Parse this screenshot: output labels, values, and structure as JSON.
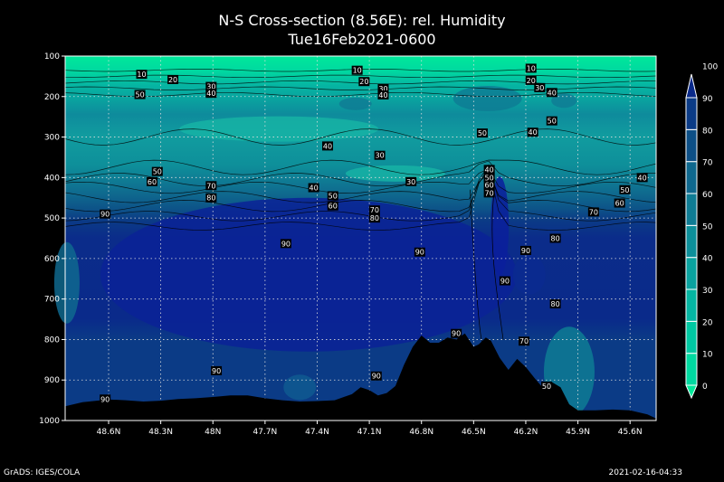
{
  "chart_data": {
    "type": "heatmap",
    "title": "N-S Cross-section (8.56E): rel. Humidity",
    "subtitle": "Tue16Feb2021-0600",
    "x_ticks": [
      "48.6N",
      "48.3N",
      "48N",
      "47.7N",
      "47.4N",
      "47.1N",
      "46.8N",
      "46.5N",
      "46.2N",
      "45.9N",
      "45.6N"
    ],
    "y_ticks": [
      "100",
      "200",
      "300",
      "400",
      "500",
      "600",
      "700",
      "800",
      "900",
      "1000"
    ],
    "xlim": [
      48.85,
      45.45
    ],
    "ylim": [
      100,
      1000
    ],
    "grid": true,
    "colorbar": {
      "levels": [
        "0",
        "10",
        "20",
        "30",
        "40",
        "50",
        "60",
        "70",
        "80",
        "90",
        "100"
      ],
      "colors": [
        "#00e89a",
        "#00d9a0",
        "#00c8a2",
        "#05b5a2",
        "#0aa29f",
        "#0d8f9a",
        "#0f7c94",
        "#0f688e",
        "#0d4f86",
        "#0b3b86",
        "#0a2a8a"
      ]
    },
    "terrain_pressure": [
      [
        48.85,
        965
      ],
      [
        48.75,
        955
      ],
      [
        48.6,
        948
      ],
      [
        48.5,
        950
      ],
      [
        48.4,
        953
      ],
      [
        48.3,
        951
      ],
      [
        48.2,
        947
      ],
      [
        48.1,
        945
      ],
      [
        48.0,
        942
      ],
      [
        47.9,
        938
      ],
      [
        47.8,
        938
      ],
      [
        47.7,
        945
      ],
      [
        47.6,
        950
      ],
      [
        47.5,
        953
      ],
      [
        47.4,
        952
      ],
      [
        47.3,
        950
      ],
      [
        47.2,
        935
      ],
      [
        47.15,
        918
      ],
      [
        47.1,
        925
      ],
      [
        47.05,
        938
      ],
      [
        47.0,
        932
      ],
      [
        46.95,
        915
      ],
      [
        46.9,
        862
      ],
      [
        46.85,
        818
      ],
      [
        46.8,
        790
      ],
      [
        46.75,
        808
      ],
      [
        46.7,
        808
      ],
      [
        46.65,
        795
      ],
      [
        46.6,
        800
      ],
      [
        46.55,
        785
      ],
      [
        46.5,
        818
      ],
      [
        46.47,
        812
      ],
      [
        46.43,
        795
      ],
      [
        46.4,
        803
      ],
      [
        46.35,
        845
      ],
      [
        46.3,
        875
      ],
      [
        46.25,
        848
      ],
      [
        46.2,
        868
      ],
      [
        46.15,
        895
      ],
      [
        46.1,
        920
      ],
      [
        46.05,
        905
      ],
      [
        46.0,
        918
      ],
      [
        45.95,
        960
      ],
      [
        45.9,
        975
      ],
      [
        45.8,
        975
      ],
      [
        45.7,
        973
      ],
      [
        45.6,
        975
      ],
      [
        45.5,
        985
      ],
      [
        45.45,
        995
      ]
    ],
    "contour_labels": [
      {
        "t": "10",
        "lat": 48.41,
        "p": 145
      },
      {
        "t": "20",
        "lat": 48.23,
        "p": 158
      },
      {
        "t": "30",
        "lat": 48.01,
        "p": 175
      },
      {
        "t": "40",
        "lat": 48.01,
        "p": 192
      },
      {
        "t": "50",
        "lat": 48.42,
        "p": 195
      },
      {
        "t": "10",
        "lat": 47.17,
        "p": 135
      },
      {
        "t": "20",
        "lat": 47.13,
        "p": 163
      },
      {
        "t": "30",
        "lat": 47.02,
        "p": 180
      },
      {
        "t": "40",
        "lat": 47.02,
        "p": 196
      },
      {
        "t": "10",
        "lat": 46.17,
        "p": 130
      },
      {
        "t": "20",
        "lat": 46.17,
        "p": 160
      },
      {
        "t": "30",
        "lat": 46.12,
        "p": 178
      },
      {
        "t": "40",
        "lat": 46.05,
        "p": 190
      },
      {
        "t": "50",
        "lat": 46.05,
        "p": 260
      },
      {
        "t": "50",
        "lat": 46.45,
        "p": 290
      },
      {
        "t": "40",
        "lat": 46.16,
        "p": 288
      },
      {
        "t": "40",
        "lat": 47.34,
        "p": 322
      },
      {
        "t": "30",
        "lat": 47.04,
        "p": 345
      },
      {
        "t": "50",
        "lat": 48.32,
        "p": 385
      },
      {
        "t": "60",
        "lat": 48.35,
        "p": 410
      },
      {
        "t": "70",
        "lat": 48.01,
        "p": 420
      },
      {
        "t": "80",
        "lat": 48.01,
        "p": 450
      },
      {
        "t": "40",
        "lat": 47.42,
        "p": 425
      },
      {
        "t": "50",
        "lat": 47.31,
        "p": 445
      },
      {
        "t": "60",
        "lat": 47.31,
        "p": 470
      },
      {
        "t": "30",
        "lat": 46.86,
        "p": 410
      },
      {
        "t": "40",
        "lat": 46.41,
        "p": 380
      },
      {
        "t": "50",
        "lat": 46.41,
        "p": 400
      },
      {
        "t": "60",
        "lat": 46.41,
        "p": 418
      },
      {
        "t": "70",
        "lat": 46.41,
        "p": 438
      },
      {
        "t": "40",
        "lat": 45.53,
        "p": 400
      },
      {
        "t": "50",
        "lat": 45.63,
        "p": 430
      },
      {
        "t": "60",
        "lat": 45.66,
        "p": 463
      },
      {
        "t": "70",
        "lat": 45.81,
        "p": 485
      },
      {
        "t": "90",
        "lat": 48.62,
        "p": 490
      },
      {
        "t": "70",
        "lat": 47.07,
        "p": 480
      },
      {
        "t": "80",
        "lat": 47.07,
        "p": 500
      },
      {
        "t": "90",
        "lat": 47.58,
        "p": 563
      },
      {
        "t": "90",
        "lat": 46.81,
        "p": 584
      },
      {
        "t": "90",
        "lat": 46.2,
        "p": 580
      },
      {
        "t": "80",
        "lat": 46.03,
        "p": 550
      },
      {
        "t": "90",
        "lat": 46.32,
        "p": 655
      },
      {
        "t": "80",
        "lat": 46.03,
        "p": 712
      },
      {
        "t": "90",
        "lat": 46.6,
        "p": 785
      },
      {
        "t": "70",
        "lat": 46.21,
        "p": 804
      },
      {
        "t": "90",
        "lat": 47.98,
        "p": 877
      },
      {
        "t": "90",
        "lat": 47.06,
        "p": 890
      },
      {
        "t": "50",
        "lat": 46.08,
        "p": 915
      },
      {
        "t": "90",
        "lat": 48.62,
        "p": 947
      }
    ]
  },
  "footer": {
    "left": "GrADS: IGES/COLA",
    "right": "2021-02-16-04:33"
  }
}
